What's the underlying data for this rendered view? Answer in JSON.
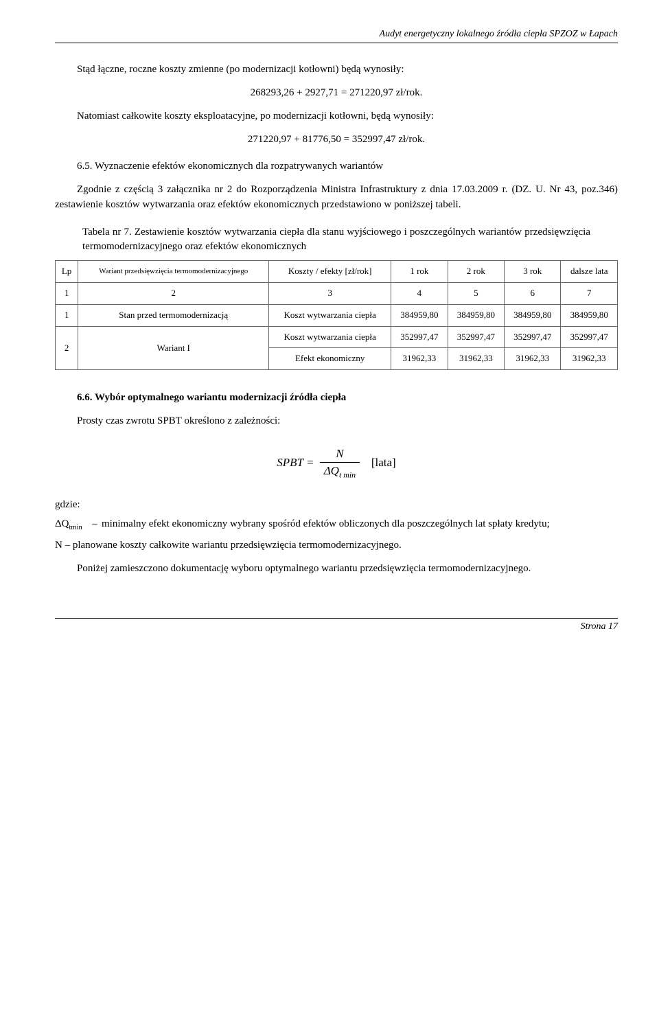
{
  "header": "Audyt energetyczny lokalnego źródła ciepła SPZOZ w Łapach",
  "p1": "Stąd łączne, roczne koszty zmienne (po modernizacji kotłowni) będą wynosiły:",
  "eq1": "268293,26 + 2927,71 = 271220,97 zł/rok.",
  "p2": "Natomiast całkowite koszty eksploatacyjne, po modernizacji kotłowni, będą wynosiły:",
  "eq2": "271220,97 + 81776,50 = 352997,47 zł/rok.",
  "sec65": "6.5. Wyznaczenie efektów ekonomicznych dla rozpatrywanych wariantów",
  "p3": "Zgodnie z częścią 3 załącznika nr 2 do Rozporządzenia Ministra Infrastruktury z dnia 17.03.2009 r. (DZ. U. Nr 43, poz.346) zestawienie kosztów wytwarzania oraz efektów ekonomicznych przedstawiono w poniższej tabeli.",
  "tab7_caption": "Tabela nr 7. Zestawienie kosztów wytwarzania ciepła dla stanu wyjściowego i poszczególnych wariantów przedsięwzięcia termomodernizacyjnego oraz efektów ekonomicznych",
  "tab7": {
    "head": {
      "c1": "Lp",
      "c2": "Wariant przedsięwzięcia termomodernizacyjnego",
      "c3": "Koszty / efekty [zł/rok]",
      "c4": "1 rok",
      "c5": "2 rok",
      "c6": "3 rok",
      "c7": "dalsze lata"
    },
    "numrow": {
      "c1": "1",
      "c2": "2",
      "c3": "3",
      "c4": "4",
      "c5": "5",
      "c6": "6",
      "c7": "7"
    },
    "r1": {
      "lp": "1",
      "name": "Stan przed termomodernizacją",
      "metric": "Koszt wytwarzania ciepła",
      "v1": "384959,80",
      "v2": "384959,80",
      "v3": "384959,80",
      "v4": "384959,80"
    },
    "r2": {
      "lp": "2",
      "name": "Wariant I",
      "m1": "Koszt wytwarzania ciepła",
      "a1": "352997,47",
      "a2": "352997,47",
      "a3": "352997,47",
      "a4": "352997,47",
      "m2": "Efekt ekonomiczny",
      "b1": "31962,33",
      "b2": "31962,33",
      "b3": "31962,33",
      "b4": "31962,33"
    }
  },
  "sec66": "6.6. Wybór optymalnego wariantu modernizacji źródła ciepła",
  "p4": "Prosty czas zwrotu SPBT określono z zależności:",
  "formula": {
    "lhs": "SPBT",
    "eq": " = ",
    "num": "N",
    "den_pre": "ΔQ",
    "den_sub": "t min",
    "unit": "[lata]"
  },
  "gdzie": "gdzie:",
  "def1_sym": "ΔQ",
  "def1_sub": "tmin",
  "def1_txt": "minimalny efekt ekonomiczny wybrany spośród efektów obliczonych dla poszczególnych lat spłaty kredytu;",
  "def2_txt": "N – planowane koszty całkowite wariantu przedsięwzięcia termomodernizacyjnego.",
  "p5": "Poniżej zamieszczono dokumentację wyboru optymalnego wariantu przedsięwzięcia termomodernizacyjnego.",
  "footer": "Strona   17",
  "dash": "–"
}
